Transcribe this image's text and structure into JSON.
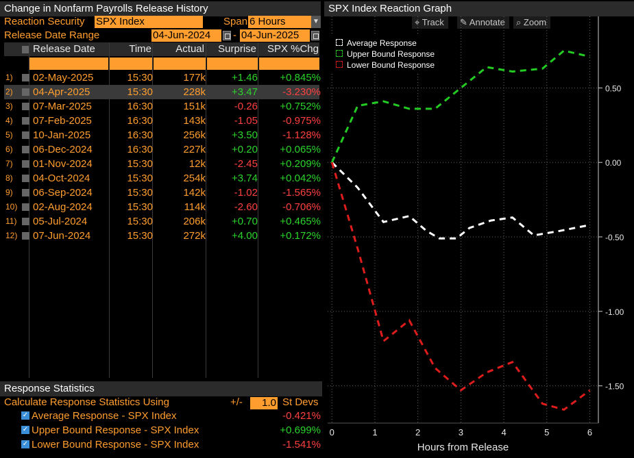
{
  "left_panel": {
    "title": "Change in Nonfarm Payrolls Release History",
    "reaction_security_label": "Reaction Security",
    "reaction_security_value": "SPX Index",
    "span_label": "Span",
    "span_value": "6 Hours",
    "release_date_range_label": "Release Date Range",
    "date_from": "04-Jun-2024",
    "date_separator": "-",
    "date_to": "04-Jun-2025",
    "columns": [
      "Release Date",
      "Time",
      "Actual",
      "Surprise",
      "SPX %Chg"
    ],
    "rows": [
      {
        "num": "1)",
        "date": "02-May-2025",
        "time": "15:30",
        "actual": "177k",
        "surprise": "+1.46",
        "chg": "+0.845%"
      },
      {
        "num": "2)",
        "date": "04-Apr-2025",
        "time": "15:30",
        "actual": "228k",
        "surprise": "+3.47",
        "chg": "-3.230%"
      },
      {
        "num": "3)",
        "date": "07-Mar-2025",
        "time": "16:30",
        "actual": "151k",
        "surprise": "-0.26",
        "chg": "+0.752%"
      },
      {
        "num": "4)",
        "date": "07-Feb-2025",
        "time": "16:30",
        "actual": "143k",
        "surprise": "-1.05",
        "chg": "-0.975%"
      },
      {
        "num": "5)",
        "date": "10-Jan-2025",
        "time": "16:30",
        "actual": "256k",
        "surprise": "+3.50",
        "chg": "-1.128%"
      },
      {
        "num": "6)",
        "date": "06-Dec-2024",
        "time": "16:30",
        "actual": "227k",
        "surprise": "+0.20",
        "chg": "+0.065%"
      },
      {
        "num": "7)",
        "date": "01-Nov-2024",
        "time": "15:30",
        "actual": "12k",
        "surprise": "-2.45",
        "chg": "+0.209%"
      },
      {
        "num": "8)",
        "date": "04-Oct-2024",
        "time": "15:30",
        "actual": "254k",
        "surprise": "+3.74",
        "chg": "+0.042%"
      },
      {
        "num": "9)",
        "date": "06-Sep-2024",
        "time": "15:30",
        "actual": "142k",
        "surprise": "-1.02",
        "chg": "-1.565%"
      },
      {
        "num": "10)",
        "date": "02-Aug-2024",
        "time": "15:30",
        "actual": "114k",
        "surprise": "-2.60",
        "chg": "-0.706%"
      },
      {
        "num": "11)",
        "date": "05-Jul-2024",
        "time": "15:30",
        "actual": "206k",
        "surprise": "+0.70",
        "chg": "+0.465%"
      },
      {
        "num": "12)",
        "date": "07-Jun-2024",
        "time": "15:30",
        "actual": "272k",
        "surprise": "+4.00",
        "chg": "+0.172%"
      }
    ]
  },
  "stats": {
    "title": "Response Statistics",
    "calc_label": "Calculate Response Statistics Using",
    "pm_label": "+/-",
    "std_value": "1.0",
    "std_unit": "St Devs",
    "items": [
      {
        "label": "Average Response - SPX Index",
        "value": "-0.421%"
      },
      {
        "label": "Upper Bound Response - SPX Index",
        "value": "+0.699%"
      },
      {
        "label": "Lower Bound Response - SPX Index",
        "value": "-1.541%"
      }
    ]
  },
  "graph": {
    "title": "SPX Index Reaction Graph",
    "toolbar": {
      "track": "Track",
      "annotate": "Annotate",
      "zoom": "Zoom"
    },
    "colors": {
      "average": "#ffffff",
      "upper": "#22cc22",
      "lower": "#dd1c1c",
      "grid": "#666666"
    }
  },
  "chart_data": {
    "type": "line",
    "title": "SPX Index Reaction Graph",
    "xlabel": "Hours from Release",
    "ylabel": "",
    "xlim": [
      -0.1,
      6.2
    ],
    "ylim": [
      -1.75,
      0.98
    ],
    "x_ticks": [
      "0",
      "1",
      "2",
      "3",
      "4",
      "5",
      "6"
    ],
    "y_ticks": [
      "0.50",
      "0.00",
      "-0.50",
      "-1.00",
      "-1.50"
    ],
    "legend": "top-left",
    "grid": true,
    "series": [
      {
        "name": "Average Response",
        "color": "#ffffff",
        "x": [
          0,
          0.6,
          1.2,
          1.8,
          2.2,
          2.5,
          2.9,
          3.2,
          3.7,
          4.2,
          4.7,
          5.3,
          6.0
        ],
        "y": [
          0.0,
          -0.17,
          -0.4,
          -0.36,
          -0.46,
          -0.51,
          -0.51,
          -0.44,
          -0.39,
          -0.37,
          -0.49,
          -0.46,
          -0.42
        ]
      },
      {
        "name": "Upper Bound Response",
        "color": "#22cc22",
        "x": [
          0,
          0.6,
          1.2,
          1.8,
          2.4,
          3.0,
          3.6,
          4.2,
          4.9,
          5.4,
          6.0
        ],
        "y": [
          0.0,
          0.38,
          0.41,
          0.36,
          0.36,
          0.5,
          0.64,
          0.61,
          0.63,
          0.75,
          0.71
        ]
      },
      {
        "name": "Lower Bound Response",
        "color": "#dd1c1c",
        "x": [
          0,
          0.6,
          1.2,
          1.8,
          2.4,
          3.0,
          3.6,
          4.2,
          4.9,
          5.4,
          6.0
        ],
        "y": [
          0.0,
          -0.58,
          -1.2,
          -1.06,
          -1.38,
          -1.53,
          -1.41,
          -1.34,
          -1.62,
          -1.66,
          -1.53
        ]
      }
    ]
  }
}
